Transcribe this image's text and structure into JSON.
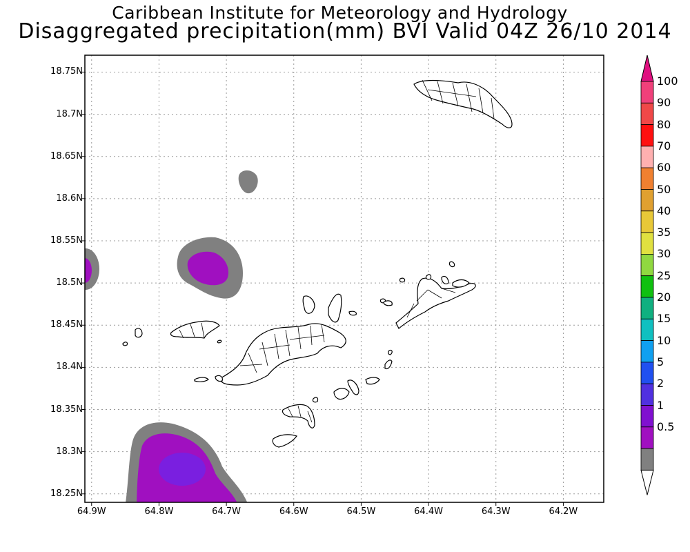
{
  "title": {
    "line1": "Caribbean Institute for Meteorology and Hydrology",
    "line2": "Disaggregated precipitation(mm) BVI Valid 04Z 26/10 2014"
  },
  "axes": {
    "lat_labels": [
      "18.75N",
      "18.7N",
      "18.65N",
      "18.6N",
      "18.55N",
      "18.5N",
      "18.45N",
      "18.4N",
      "18.35N",
      "18.3N",
      "18.25N"
    ],
    "lat_values": [
      18.75,
      18.7,
      18.65,
      18.6,
      18.55,
      18.5,
      18.45,
      18.4,
      18.35,
      18.3,
      18.25
    ],
    "lon_labels": [
      "64.9W",
      "64.8W",
      "64.7W",
      "64.6W",
      "64.5W",
      "64.4W",
      "64.3W",
      "64.2W"
    ],
    "lon_values": [
      -64.9,
      -64.8,
      -64.7,
      -64.6,
      -64.5,
      -64.4,
      -64.3,
      -64.2
    ],
    "lat_range": [
      18.24,
      18.77
    ],
    "lon_range": [
      -64.91,
      -64.14
    ],
    "grid": "dotted"
  },
  "colorbar": {
    "labels": [
      "100",
      "90",
      "80",
      "70",
      "60",
      "50",
      "40",
      "35",
      "30",
      "25",
      "20",
      "15",
      "10",
      "5",
      "2",
      "1",
      "0.5"
    ],
    "colors": [
      "#f0407a",
      "#f04848",
      "#ff1010",
      "#ffb0b0",
      "#f08030",
      "#e0a030",
      "#e8c838",
      "#e0e040",
      "#90d840",
      "#10c010",
      "#10b080",
      "#10c0c0",
      "#10a0f0",
      "#2050f0",
      "#5030e0",
      "#8010d0",
      "#a010c0",
      "#808080"
    ],
    "top_arrow_color": "#e01080"
  },
  "chart_data": {
    "type": "map",
    "variable": "Disaggregated precipitation (mm)",
    "valid": "04Z 26/10 2014",
    "rain_areas": [
      {
        "name": "northwest cell",
        "lon": -64.735,
        "lat": 18.52,
        "outer_mm": 0.5,
        "inner_mm": 1
      },
      {
        "name": "west edge cell",
        "lon": -64.905,
        "lat": 18.52,
        "outer_mm": 0.5,
        "inner_mm": 1
      },
      {
        "name": "north small cell",
        "lon": -64.67,
        "lat": 18.63,
        "outer_mm": 0.5
      },
      {
        "name": "southwest cell",
        "lon": -64.76,
        "lat": 18.29,
        "outer_mm": 0.5,
        "inner_mm": 1,
        "core_mm": 2
      }
    ]
  }
}
